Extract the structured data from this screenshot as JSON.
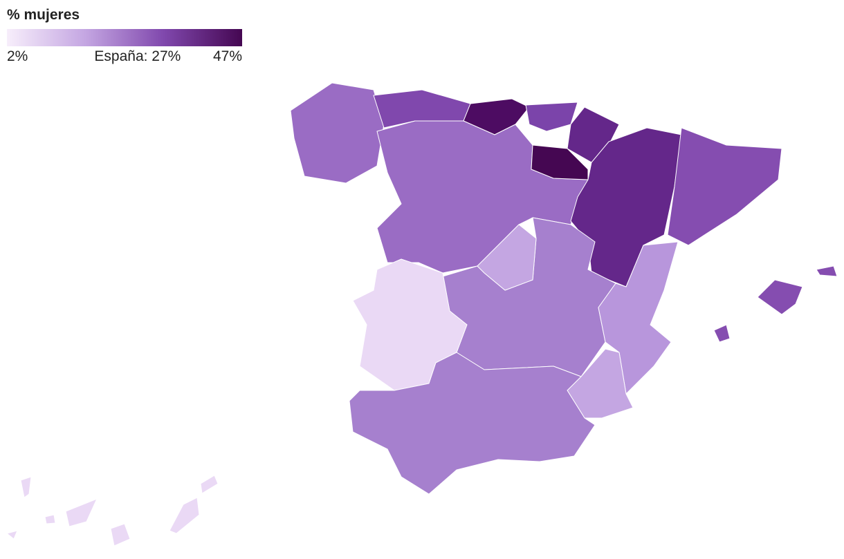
{
  "legend": {
    "title": "% mujeres",
    "range": [
      2,
      47
    ],
    "colors": [
      "#f7eefb",
      "#c4a6e2",
      "#8048ad",
      "#450752"
    ],
    "ticks": [
      {
        "value": 2,
        "label": "2%"
      },
      {
        "value": 27,
        "label": "España: 27%"
      },
      {
        "value": 47,
        "label": "47%"
      }
    ]
  }
}
